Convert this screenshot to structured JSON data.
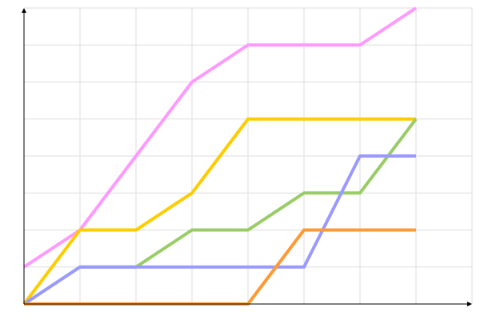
{
  "chart_data": {
    "type": "line",
    "title": "",
    "xlabel": "",
    "ylabel": "",
    "x": [
      0,
      1,
      2,
      3,
      4,
      5,
      6,
      7
    ],
    "xlim": [
      0,
      8
    ],
    "ylim": [
      0,
      8
    ],
    "grid": true,
    "legend": "none",
    "series": [
      {
        "color": "#ff99ff",
        "values": [
          1,
          2,
          4,
          6,
          7,
          7,
          7,
          8
        ]
      },
      {
        "color": "#ffcc00",
        "values": [
          0,
          2,
          2,
          3,
          5,
          5,
          5,
          5
        ]
      },
      {
        "color": "#99cc66",
        "values": [
          0,
          1,
          1,
          2,
          2,
          3,
          3,
          5
        ]
      },
      {
        "color": "#9999ff",
        "values": [
          0,
          1,
          1,
          1,
          1,
          1,
          4,
          4
        ]
      },
      {
        "color": "#ff9933",
        "values": [
          0,
          0,
          0,
          0,
          0,
          2,
          2,
          2
        ]
      }
    ]
  }
}
